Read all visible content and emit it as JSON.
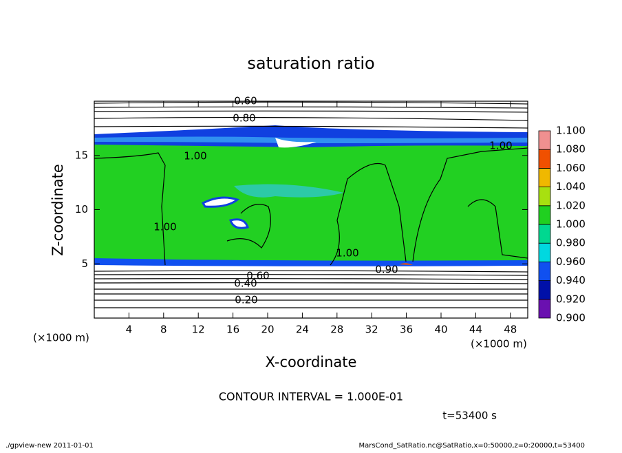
{
  "chart_data": {
    "type": "contour",
    "title": "saturation ratio",
    "x_label": "X-coordinate",
    "y_label": "Z-coordinate",
    "x_unit": "(×1000 m)",
    "y_unit": "(×1000 m)",
    "xlim": [
      0,
      50
    ],
    "xticks": [
      4,
      8,
      12,
      16,
      20,
      24,
      28,
      32,
      36,
      40,
      44,
      48
    ],
    "ylim": [
      0,
      20
    ],
    "yticks": [
      5,
      10,
      15
    ],
    "contour_labels": [
      {
        "value": 0.6,
        "label": "0.60"
      },
      {
        "value": 0.8,
        "label": "0.80"
      },
      {
        "value": 1.0,
        "label": "1.00"
      },
      {
        "value": 1.0,
        "label": "1.00"
      },
      {
        "value": 1.0,
        "label": "1.00"
      },
      {
        "value": 1.0,
        "label": "1.00"
      },
      {
        "value": 0.9,
        "label": "0.90"
      },
      {
        "value": 0.6,
        "label": "0.60"
      },
      {
        "value": 0.4,
        "label": "0.40"
      },
      {
        "value": 0.2,
        "label": "0.20"
      }
    ],
    "colorbar": {
      "levels": [
        {
          "value": 0.9,
          "label": "0.900"
        },
        {
          "value": 0.92,
          "label": "0.920"
        },
        {
          "value": 0.94,
          "label": "0.940"
        },
        {
          "value": 0.96,
          "label": "0.960"
        },
        {
          "value": 0.98,
          "label": "0.980"
        },
        {
          "value": 1.0,
          "label": "1.000"
        },
        {
          "value": 1.02,
          "label": "1.020"
        },
        {
          "value": 1.04,
          "label": "1.040"
        },
        {
          "value": 1.06,
          "label": "1.060"
        },
        {
          "value": 1.08,
          "label": "1.080"
        },
        {
          "value": 1.1,
          "label": "1.100"
        }
      ],
      "colors": [
        "#6a10b0",
        "#0010a8",
        "#1050f0",
        "#00d8e0",
        "#00d890",
        "#20d020",
        "#a8e010",
        "#f0b800",
        "#f05000",
        "#f09090"
      ]
    },
    "annotations": [
      "CONTOUR INTERVAL = 1.000E-01",
      "t=53400 s",
      "./gpview-new  2011-01-01",
      "MarsCond_SatRatio.nc@SatRatio,x=0:50000,z=0:20000,t=53400"
    ]
  }
}
